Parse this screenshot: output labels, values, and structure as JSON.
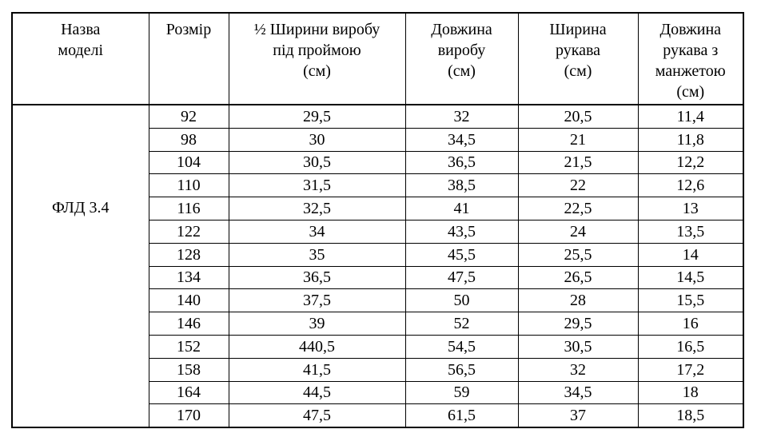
{
  "table": {
    "model_name": "ФЛД 3.4",
    "headers": [
      "Назва\nмоделі",
      "Розмір",
      "½ Ширини виробу\nпід проймою\n(см)",
      "Довжина\nвиробу\n(см)",
      "Ширина\nрукава\n(см)",
      "Довжина\nрукава з\nманжетою\n(см)"
    ],
    "rows": [
      {
        "size": "92",
        "half_width_under_armhole": "29,5",
        "product_length": "32",
        "sleeve_width": "20,5",
        "sleeve_length_with_cuff": "11,4"
      },
      {
        "size": "98",
        "half_width_under_armhole": "30",
        "product_length": "34,5",
        "sleeve_width": "21",
        "sleeve_length_with_cuff": "11,8"
      },
      {
        "size": "104",
        "half_width_under_armhole": "30,5",
        "product_length": "36,5",
        "sleeve_width": "21,5",
        "sleeve_length_with_cuff": "12,2"
      },
      {
        "size": "110",
        "half_width_under_armhole": "31,5",
        "product_length": "38,5",
        "sleeve_width": "22",
        "sleeve_length_with_cuff": "12,6"
      },
      {
        "size": "116",
        "half_width_under_armhole": "32,5",
        "product_length": "41",
        "sleeve_width": "22,5",
        "sleeve_length_with_cuff": "13"
      },
      {
        "size": "122",
        "half_width_under_armhole": "34",
        "product_length": "43,5",
        "sleeve_width": "24",
        "sleeve_length_with_cuff": "13,5"
      },
      {
        "size": "128",
        "half_width_under_armhole": "35",
        "product_length": "45,5",
        "sleeve_width": "25,5",
        "sleeve_length_with_cuff": "14"
      },
      {
        "size": "134",
        "half_width_under_armhole": "36,5",
        "product_length": "47,5",
        "sleeve_width": "26,5",
        "sleeve_length_with_cuff": "14,5"
      },
      {
        "size": "140",
        "half_width_under_armhole": "37,5",
        "product_length": "50",
        "sleeve_width": "28",
        "sleeve_length_with_cuff": "15,5"
      },
      {
        "size": "146",
        "half_width_under_armhole": "39",
        "product_length": "52",
        "sleeve_width": "29,5",
        "sleeve_length_with_cuff": "16"
      },
      {
        "size": "152",
        "half_width_under_armhole": "440,5",
        "product_length": "54,5",
        "sleeve_width": "30,5",
        "sleeve_length_with_cuff": "16,5"
      },
      {
        "size": "158",
        "half_width_under_armhole": "41,5",
        "product_length": "56,5",
        "sleeve_width": "32",
        "sleeve_length_with_cuff": "17,2"
      },
      {
        "size": "164",
        "half_width_under_armhole": "44,5",
        "product_length": "59",
        "sleeve_width": "34,5",
        "sleeve_length_with_cuff": "18"
      },
      {
        "size": "170",
        "half_width_under_armhole": "47,5",
        "product_length": "61,5",
        "sleeve_width": "37",
        "sleeve_length_with_cuff": "18,5"
      }
    ]
  }
}
